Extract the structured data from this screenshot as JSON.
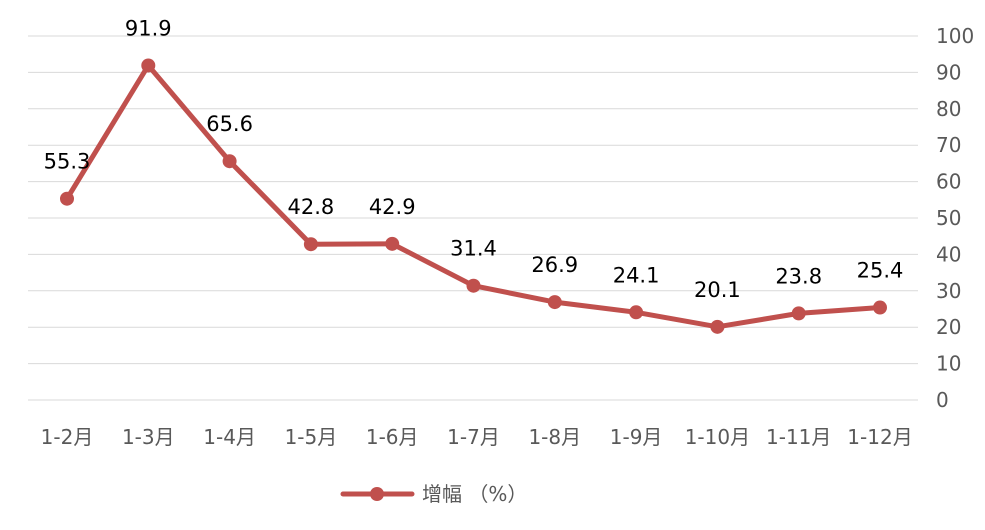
{
  "chart_data": {
    "type": "line",
    "categories": [
      "1-2月",
      "1-3月",
      "1-4月",
      "1-5月",
      "1-6月",
      "1-7月",
      "1-8月",
      "1-9月",
      "1-10月",
      "1-11月",
      "1-12月"
    ],
    "series": [
      {
        "name": "增幅 （%）",
        "values": [
          55.3,
          91.9,
          65.6,
          42.8,
          42.9,
          31.4,
          26.9,
          24.1,
          20.1,
          23.8,
          25.4
        ],
        "color": "#c0504d"
      }
    ],
    "title": "",
    "xlabel": "",
    "ylabel": "",
    "ylim": [
      0,
      100
    ],
    "yticks": [
      0,
      10,
      20,
      30,
      40,
      50,
      60,
      70,
      80,
      90,
      100
    ],
    "y_axis_position": "right",
    "grid": true,
    "gridline_color": "#d9d9d9",
    "legend_position": "bottom",
    "data_labels": true
  }
}
